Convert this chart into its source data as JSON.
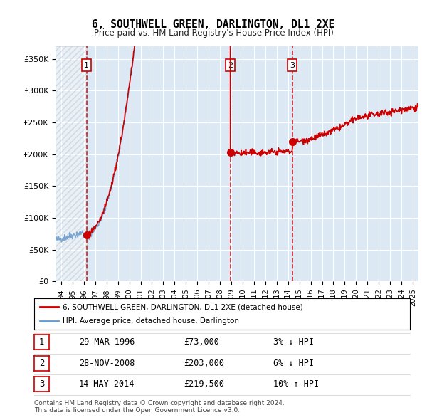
{
  "title": "6, SOUTHWELL GREEN, DARLINGTON, DL1 2XE",
  "subtitle": "Price paid vs. HM Land Registry's House Price Index (HPI)",
  "ylim": [
    0,
    370000
  ],
  "yticks": [
    0,
    50000,
    100000,
    150000,
    200000,
    250000,
    300000,
    350000
  ],
  "background_color": "#ffffff",
  "plot_bg_color": "#dce9f5",
  "grid_color": "#ffffff",
  "sale_dates": [
    1996.23,
    2008.91,
    2014.37
  ],
  "sale_prices": [
    73000,
    203000,
    219500
  ],
  "sale_labels": [
    "1",
    "2",
    "3"
  ],
  "sale_pct": [
    "3% ↓ HPI",
    "6% ↓ HPI",
    "10% ↑ HPI"
  ],
  "sale_date_labels": [
    "29-MAR-1996",
    "28-NOV-2008",
    "14-MAY-2014"
  ],
  "legend_line1": "6, SOUTHWELL GREEN, DARLINGTON, DL1 2XE (detached house)",
  "legend_line2": "HPI: Average price, detached house, Darlington",
  "footnote": "Contains HM Land Registry data © Crown copyright and database right 2024.\nThis data is licensed under the Open Government Licence v3.0.",
  "line_color_sale": "#cc0000",
  "line_color_hpi": "#6699cc",
  "marker_color": "#cc0000",
  "dashed_color": "#cc0000",
  "xmin": 1993.5,
  "xmax": 2025.5
}
